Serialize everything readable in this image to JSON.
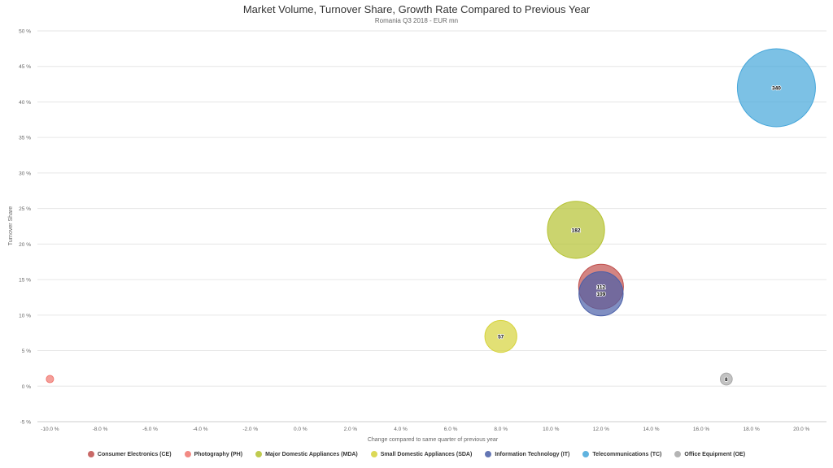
{
  "chart_data": {
    "type": "bubble",
    "title": "Market Volume, Turnover Share, Growth Rate Compared to Previous Year",
    "subtitle": "Romania Q3 2018 - EUR mn",
    "xlabel": "Change compared to same quarter of previous year",
    "ylabel": "Turnover Share",
    "xlim": [
      -10.5,
      21
    ],
    "ylim": [
      -5,
      50
    ],
    "x_ticks": [
      -10,
      -8,
      -6,
      -4,
      -2,
      0,
      2,
      4,
      6,
      8,
      10,
      12,
      14,
      16,
      18,
      20
    ],
    "x_tick_labels": [
      "-10.0 %",
      "-8.0 %",
      "-6.0 %",
      "-4.0 %",
      "-2.0 %",
      "0.0 %",
      "2.0 %",
      "4.0 %",
      "6.0 %",
      "8.0 %",
      "10.0 %",
      "12.0 %",
      "14.0 %",
      "16.0 %",
      "18.0 %",
      "20.0 %"
    ],
    "y_ticks": [
      -5,
      0,
      5,
      10,
      15,
      20,
      25,
      30,
      35,
      40,
      45,
      50
    ],
    "y_tick_labels": [
      "-5 %",
      "0 %",
      "5 %",
      "10 %",
      "15 %",
      "20 %",
      "25 %",
      "30 %",
      "35 %",
      "40 %",
      "45 %",
      "50 %"
    ],
    "grid": true,
    "legend_position": "bottom",
    "series": [
      {
        "name": "Consumer Electronics (CE)",
        "color": "#c0504d",
        "points": [
          {
            "x": 12.0,
            "y": 14.0,
            "size": 112,
            "label": "112"
          }
        ]
      },
      {
        "name": "Photography (PH)",
        "color": "#f0766f",
        "points": [
          {
            "x": -10.0,
            "y": 1.0,
            "size": 3,
            "label": ""
          }
        ]
      },
      {
        "name": "Major Domestic Appliances (MDA)",
        "color": "#b5c231",
        "points": [
          {
            "x": 11.0,
            "y": 22.0,
            "size": 182,
            "label": "182"
          }
        ]
      },
      {
        "name": "Small Domestic Appliances (SDA)",
        "color": "#d6d33a",
        "points": [
          {
            "x": 8.0,
            "y": 7.0,
            "size": 57,
            "label": "57"
          }
        ]
      },
      {
        "name": "Information Technology (IT)",
        "color": "#4a5fa8",
        "points": [
          {
            "x": 12.0,
            "y": 13.0,
            "size": 109,
            "label": "109"
          }
        ]
      },
      {
        "name": "Telecommunications (TC)",
        "color": "#45a6da",
        "points": [
          {
            "x": 19.0,
            "y": 42.0,
            "size": 340,
            "label": "340"
          }
        ]
      },
      {
        "name": "Office Equipment (OE)",
        "color": "#a8a8a8",
        "points": [
          {
            "x": 17.0,
            "y": 1.0,
            "size": 8,
            "label": "8"
          }
        ]
      }
    ]
  }
}
